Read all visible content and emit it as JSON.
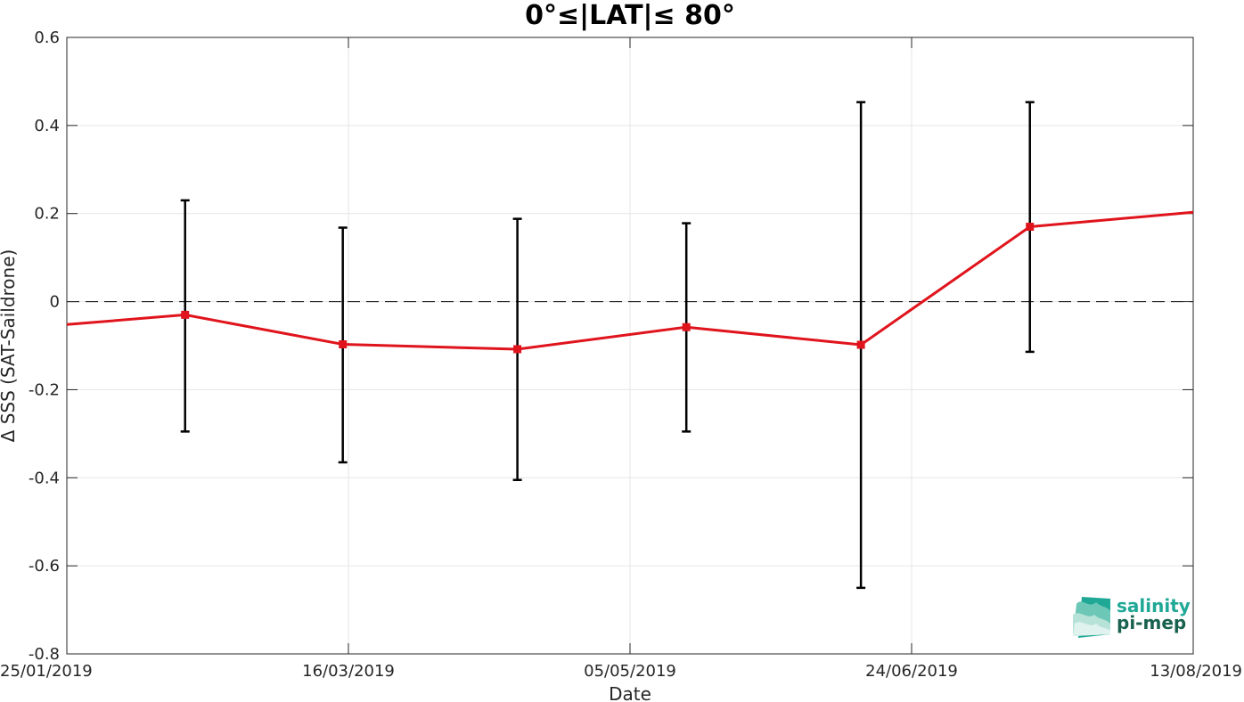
{
  "chart_data": {
    "type": "line",
    "title": "0°≤|LAT|≤ 80°",
    "xlabel": "Date",
    "ylabel": "Δ SSS (SAT-Saildrone)",
    "xlim": [
      "25/01/2019",
      "13/08/2019"
    ],
    "ylim": [
      -0.8,
      0.6
    ],
    "x_ticks": [
      "25/01/2019",
      "16/03/2019",
      "05/05/2019",
      "24/06/2019",
      "13/08/2019"
    ],
    "y_ticks": [
      0.6,
      0.4,
      0.2,
      0,
      -0.2,
      -0.4,
      -0.6,
      -0.8
    ],
    "y_tick_labels": [
      "0.6",
      "0.4",
      "0.2",
      "0",
      "-0.2",
      "-0.4",
      "-0.6",
      "-0.8"
    ],
    "grid": true,
    "reference_line": {
      "y": 0,
      "style": "dashed",
      "color": "#000000"
    },
    "series": [
      {
        "color": "#e0141c",
        "marker": "square",
        "line_start": {
          "x": "25/01/2019",
          "y": -0.052
        },
        "line_end": {
          "x": "13/08/2019",
          "y": 0.203
        },
        "points": [
          {
            "x": "15/02/2019",
            "y": -0.03,
            "err_low": -0.295,
            "err_high": 0.23
          },
          {
            "x": "15/03/2019",
            "y": -0.097,
            "err_low": -0.365,
            "err_high": 0.168
          },
          {
            "x": "15/04/2019",
            "y": -0.108,
            "err_low": -0.405,
            "err_high": 0.188
          },
          {
            "x": "15/05/2019",
            "y": -0.058,
            "err_low": -0.295,
            "err_high": 0.178
          },
          {
            "x": "15/06/2019",
            "y": -0.098,
            "err_low": -0.65,
            "err_high": 0.453
          },
          {
            "x": "15/07/2019",
            "y": 0.17,
            "err_low": -0.114,
            "err_high": 0.453
          }
        ]
      }
    ]
  },
  "logo": {
    "line1": "salinity",
    "line2": "pi-mep"
  },
  "colors": {
    "series": "#e0141c",
    "errorbar": "#000000",
    "grid": "#e6e6e6",
    "axis": "#262626",
    "logo_teal": "#1fa896",
    "logo_dark": "#19624f"
  }
}
